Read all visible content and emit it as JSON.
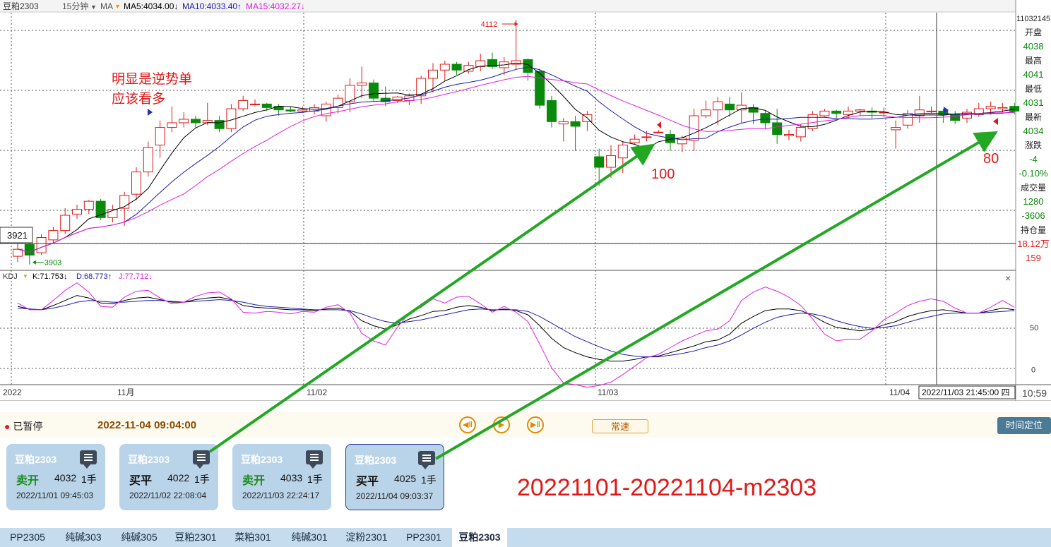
{
  "header": {
    "symbol": "豆粕2303",
    "period": "15分钟",
    "indicator": "MA",
    "ma5": "MA5:4034.00↓",
    "ma10": "MA10:4033.40↑",
    "ma15": "MA15:4032.27↓",
    "corner_value": "11032145"
  },
  "colors": {
    "up": "#e01818",
    "down": "#0a8a0a",
    "ma5": "#000000",
    "ma10": "#1a1ab0",
    "ma15": "#e020e0",
    "annotation": "#e01818",
    "arrow": "#22a822"
  },
  "side_panel": [
    {
      "label": "开盘",
      "value": "4038",
      "value_color": "#0a8a0a"
    },
    {
      "label": "最高",
      "value": "4041",
      "value_color": "#0a8a0a"
    },
    {
      "label": "最低",
      "value": "4031",
      "value_color": "#0a8a0a"
    },
    {
      "label": "最新",
      "value": "4034",
      "value_color": "#0a8a0a"
    },
    {
      "label": "涨跌",
      "value": "-4",
      "value_color": "#0a8a0a"
    },
    {
      "label": "",
      "value": "-0.10%",
      "value_color": "#0a8a0a"
    },
    {
      "label": "成交量",
      "value": "1280",
      "value_color": "#0a8a0a"
    },
    {
      "label": "",
      "value": "-3606",
      "value_color": "#0a8a0a"
    },
    {
      "label": "持仓量",
      "value": "18.12万",
      "value_color": "#e01818"
    },
    {
      "label": "",
      "value": "159",
      "value_color": "#e01818"
    }
  ],
  "chart_data": [
    {
      "type": "candlestick",
      "title": "豆粕2303",
      "period": "15分钟",
      "ylim": [
        3898,
        4118
      ],
      "high_label": "4112",
      "low_label": "3903",
      "cursor_price_label": "3921",
      "x_labels": [
        "2022",
        "11月",
        "11/02",
        "11/03",
        "11/04"
      ],
      "cursor_time_label": "2022/11/03 21:45:00 四",
      "candles": [
        [
          3910,
          3916,
          3905,
          3921
        ],
        [
          3920,
          3911,
          3903,
          3924
        ],
        [
          3913,
          3926,
          3911,
          3929
        ],
        [
          3924,
          3932,
          3921,
          3935
        ],
        [
          3932,
          3945,
          3929,
          3951
        ],
        [
          3946,
          3950,
          3942,
          3954
        ],
        [
          3950,
          3957,
          3946,
          3958
        ],
        [
          3957,
          3943,
          3941,
          3959
        ],
        [
          3943,
          3950,
          3939,
          3954
        ],
        [
          3951,
          3962,
          3936,
          3965
        ],
        [
          3963,
          3982,
          3958,
          3986
        ],
        [
          3982,
          4003,
          3978,
          4008
        ],
        [
          4005,
          4020,
          3994,
          4026
        ],
        [
          4020,
          4024,
          4016,
          4038
        ],
        [
          4024,
          4027,
          4020,
          4033
        ],
        [
          4027,
          4024,
          4020,
          4030
        ],
        [
          4024,
          4026,
          4022,
          4041
        ],
        [
          4026,
          4019,
          4016,
          4030
        ],
        [
          4019,
          4036,
          4016,
          4040
        ],
        [
          4036,
          4043,
          4034,
          4047
        ],
        [
          4040,
          4040,
          4038,
          4044
        ],
        [
          4040,
          4037,
          4034,
          4041
        ],
        [
          4038,
          4035,
          4030,
          4040
        ],
        [
          4035,
          4034,
          4033,
          4038
        ],
        [
          4034,
          4035,
          4033,
          4038
        ],
        [
          4034,
          4037,
          4031,
          4040
        ],
        [
          4030,
          4040,
          4025,
          4042
        ],
        [
          4037,
          4045,
          4032,
          4048
        ],
        [
          4042,
          4056,
          4033,
          4062
        ],
        [
          4056,
          4058,
          4045,
          4072
        ],
        [
          4058,
          4045,
          4042,
          4061
        ],
        [
          4045,
          4042,
          4038,
          4055
        ],
        [
          4043,
          4046,
          4041,
          4047
        ],
        [
          4043,
          4047,
          4039,
          4049
        ],
        [
          4047,
          4062,
          4040,
          4064
        ],
        [
          4062,
          4069,
          4050,
          4075
        ],
        [
          4069,
          4074,
          4060,
          4077
        ],
        [
          4074,
          4069,
          4065,
          4076
        ],
        [
          4068,
          4073,
          4066,
          4076
        ],
        [
          4072,
          4077,
          4068,
          4083
        ],
        [
          4078,
          4072,
          4070,
          4084
        ],
        [
          4071,
          4076,
          4065,
          4080
        ],
        [
          4074,
          4077,
          4070,
          4112
        ],
        [
          4078,
          4067,
          4060,
          4079
        ],
        [
          4068,
          4039,
          4036,
          4070
        ],
        [
          4043,
          4025,
          4020,
          4047
        ],
        [
          4023,
          4025,
          4008,
          4028
        ],
        [
          4025,
          4021,
          4000,
          4030
        ],
        [
          4025,
          4031,
          4017,
          4034
        ],
        [
          3995,
          3986,
          3970,
          4002
        ],
        [
          3986,
          3996,
          3977,
          4005
        ],
        [
          3994,
          4005,
          3981,
          4008
        ],
        [
          4007,
          4010,
          4006,
          4014
        ],
        [
          4012,
          4012,
          4008,
          4017
        ],
        [
          4016,
          4016,
          4015,
          4018
        ],
        [
          4014,
          4007,
          4000,
          4018
        ],
        [
          4006,
          4011,
          3999,
          4013
        ],
        [
          4009,
          4030,
          4000,
          4036
        ],
        [
          4030,
          4035,
          4028,
          4043
        ],
        [
          4035,
          4042,
          4022,
          4046
        ],
        [
          4040,
          4035,
          4029,
          4046
        ],
        [
          4035,
          4039,
          4024,
          4050
        ],
        [
          4037,
          4033,
          4023,
          4040
        ],
        [
          4032,
          4024,
          4019,
          4034
        ],
        [
          4024,
          4014,
          4006,
          4036
        ],
        [
          4013,
          4014,
          4009,
          4018
        ],
        [
          4012,
          4020,
          4008,
          4023
        ],
        [
          4019,
          4031,
          4017,
          4034
        ],
        [
          4030,
          4034,
          4029,
          4036
        ],
        [
          4034,
          4032,
          4028,
          4035
        ],
        [
          4031,
          4034,
          4028,
          4038
        ],
        [
          4034,
          4035,
          4030,
          4036
        ],
        [
          4034,
          4033,
          4028,
          4037
        ],
        [
          4033,
          4033,
          4029,
          4037
        ],
        [
          4018,
          4020,
          4002,
          4026
        ],
        [
          4022,
          4032,
          4019,
          4035
        ],
        [
          4030,
          4035,
          4024,
          4047
        ],
        [
          4034,
          4034,
          4032,
          4038
        ],
        [
          4034,
          4031,
          4024,
          4036
        ],
        [
          4031,
          4026,
          4023,
          4034
        ],
        [
          4028,
          4033,
          4024,
          4036
        ],
        [
          4031,
          4036,
          4029,
          4041
        ],
        [
          4036,
          4038,
          4031,
          4042
        ],
        [
          4036,
          4037,
          4033,
          4041
        ],
        [
          4038,
          4034,
          4031,
          4041
        ]
      ]
    },
    {
      "type": "line",
      "title": "KDJ",
      "k_label": "K:71.753↓",
      "d_label": "D:68.773↑",
      "j_label": "J:77.712↓",
      "ylim": [
        -18,
        117
      ],
      "y_ticks": [
        50,
        0
      ],
      "K": [
        75,
        72,
        71,
        76,
        82,
        88,
        85,
        79,
        78,
        82,
        85,
        86,
        83,
        80,
        80,
        83,
        85,
        86,
        83,
        76,
        74,
        73,
        72,
        71,
        71,
        70,
        72,
        73,
        69,
        58,
        52,
        48,
        53,
        60,
        64,
        69,
        70,
        74,
        76,
        74,
        70,
        72,
        70,
        65,
        52,
        37,
        26,
        20,
        15,
        12,
        10,
        10,
        12,
        15,
        16,
        20,
        24,
        28,
        33,
        35,
        42,
        55,
        63,
        70,
        72,
        72,
        70,
        64,
        56,
        50,
        48,
        46,
        48,
        53,
        57,
        63,
        67,
        70,
        71,
        69,
        67,
        67,
        70,
        73,
        71
      ],
      "D": [
        73,
        72,
        71,
        73,
        76,
        80,
        82,
        81,
        80,
        80,
        81,
        82,
        82,
        81,
        80,
        81,
        82,
        83,
        82,
        80,
        77,
        75,
        74,
        73,
        72,
        71,
        71,
        71,
        70,
        66,
        61,
        57,
        55,
        57,
        59,
        62,
        65,
        68,
        71,
        72,
        71,
        71,
        71,
        69,
        63,
        55,
        47,
        39,
        33,
        27,
        22,
        18,
        16,
        15,
        15,
        17,
        19,
        22,
        26,
        29,
        34,
        41,
        49,
        56,
        62,
        65,
        67,
        66,
        63,
        58,
        54,
        51,
        49,
        50,
        52,
        56,
        60,
        63,
        66,
        67,
        67,
        67,
        68,
        69,
        70
      ],
      "J": [
        79,
        71,
        71,
        82,
        94,
        103,
        92,
        75,
        74,
        86,
        93,
        94,
        85,
        78,
        80,
        87,
        91,
        92,
        84,
        68,
        67,
        69,
        68,
        66,
        69,
        68,
        74,
        77,
        67,
        43,
        34,
        29,
        50,
        67,
        74,
        84,
        79,
        86,
        87,
        78,
        68,
        75,
        68,
        57,
        30,
        2,
        -16,
        -18,
        -21,
        -19,
        -15,
        -6,
        4,
        14,
        18,
        26,
        34,
        40,
        46,
        48,
        58,
        82,
        92,
        98,
        93,
        86,
        76,
        60,
        42,
        34,
        36,
        36,
        46,
        59,
        67,
        76,
        81,
        84,
        81,
        73,
        67,
        67,
        74,
        82,
        74
      ]
    }
  ],
  "annotations": {
    "note_line1": "明显是逆势单",
    "note_line2": "应该看多",
    "label_100": "100",
    "label_80": "80"
  },
  "footer_time": "10:59",
  "controls": {
    "status": "已暂停",
    "datetime": "2022-11-04 09:04:00",
    "speed": "常速",
    "locate": "时间定位"
  },
  "trades": [
    {
      "symbol": "豆粕2303",
      "action": "卖开",
      "side": "sell",
      "price": "4032",
      "qty": "1手",
      "time": "2022/11/01 09:45:03"
    },
    {
      "symbol": "豆粕2303",
      "action": "买平",
      "side": "buy",
      "price": "4022",
      "qty": "1手",
      "time": "2022/11/02 22:08:04"
    },
    {
      "symbol": "豆粕2303",
      "action": "卖开",
      "side": "sell",
      "price": "4033",
      "qty": "1手",
      "time": "2022/11/03 22:24:17"
    },
    {
      "symbol": "豆粕2303",
      "action": "买平",
      "side": "buy",
      "price": "4025",
      "qty": "1手",
      "time": "2022/11/04 09:03:37"
    }
  ],
  "caption": "20221101-20221104-m2303",
  "tabs": [
    "PP2305",
    "纯碱303",
    "纯碱305",
    "豆粕2301",
    "菜粕301",
    "纯碱301",
    "淀粉2301",
    "PP2301",
    "豆粕2303"
  ],
  "active_tab": 8
}
